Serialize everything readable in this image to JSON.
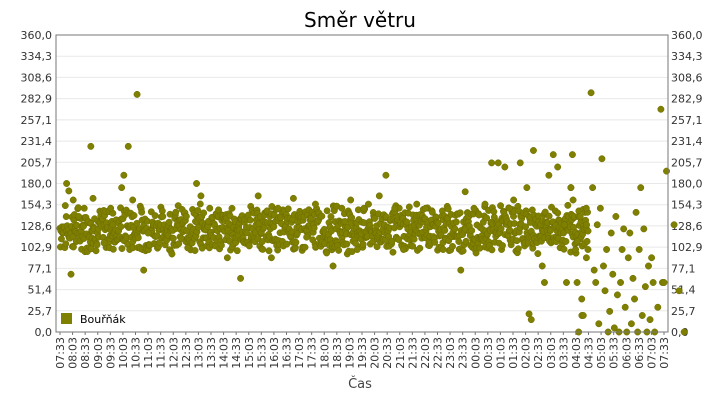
{
  "chart_data": {
    "type": "scatter",
    "title": "Směr větru",
    "xlabel": "Čas",
    "ylabel": "°",
    "ylim": [
      0,
      360
    ],
    "y_ticks": [
      "0,0",
      "25,7",
      "51,4",
      "77,1",
      "102,9",
      "128,6",
      "154,3",
      "180,0",
      "205,7",
      "231,4",
      "257,1",
      "282,9",
      "308,6",
      "334,3",
      "360,0"
    ],
    "x_ticks": [
      "07:33",
      "08:03",
      "08:33",
      "09:03",
      "09:33",
      "10:03",
      "10:33",
      "11:03",
      "11:33",
      "12:03",
      "12:33",
      "13:03",
      "13:33",
      "14:03",
      "14:33",
      "15:03",
      "15:33",
      "16:03",
      "16:33",
      "17:03",
      "17:33",
      "18:03",
      "18:33",
      "19:03",
      "19:33",
      "20:03",
      "20:33",
      "21:03",
      "21:33",
      "22:03",
      "22:33",
      "23:03",
      "23:33",
      "00:03",
      "00:33",
      "01:03",
      "01:33",
      "02:03",
      "02:33",
      "03:03",
      "03:33",
      "04:03",
      "04:33",
      "05:03",
      "05:33",
      "06:03",
      "06:33",
      "07:03",
      "07:33"
    ],
    "x_range_hours": [
      0,
      24
    ],
    "legend_position": "bottom-left",
    "grid": true,
    "series": [
      {
        "name": "Bouřňák",
        "color": "#808000",
        "typical_band": [
          100,
          150
        ],
        "points": [
          [
            0.3,
            180
          ],
          [
            0.4,
            171
          ],
          [
            0.5,
            70
          ],
          [
            0.6,
            160
          ],
          [
            0.85,
            140
          ],
          [
            1.1,
            150
          ],
          [
            1.4,
            225
          ],
          [
            1.5,
            162
          ],
          [
            2.0,
            108
          ],
          [
            2.3,
            150
          ],
          [
            2.4,
            130
          ],
          [
            2.8,
            175
          ],
          [
            2.9,
            190
          ],
          [
            3.1,
            225
          ],
          [
            3.3,
            160
          ],
          [
            3.5,
            288
          ],
          [
            3.8,
            75
          ],
          [
            4.0,
            120
          ],
          [
            5.8,
            102
          ],
          [
            6.2,
            180
          ],
          [
            6.4,
            165
          ],
          [
            6.8,
            150
          ],
          [
            7.2,
            148
          ],
          [
            7.6,
            90
          ],
          [
            8.2,
            65
          ],
          [
            9.0,
            165
          ],
          [
            9.6,
            90
          ],
          [
            9.9,
            150
          ],
          [
            10.6,
            162
          ],
          [
            11.2,
            115
          ],
          [
            11.6,
            155
          ],
          [
            12.4,
            80
          ],
          [
            12.8,
            150
          ],
          [
            13.2,
            160
          ],
          [
            13.5,
            100
          ],
          [
            13.8,
            150
          ],
          [
            14.5,
            165
          ],
          [
            14.8,
            190
          ],
          [
            15.2,
            150
          ],
          [
            15.6,
            100
          ],
          [
            16.2,
            155
          ],
          [
            16.6,
            150
          ],
          [
            17.4,
            100
          ],
          [
            18.2,
            75
          ],
          [
            18.4,
            170
          ],
          [
            18.8,
            150
          ],
          [
            19.3,
            155
          ],
          [
            19.6,
            205
          ],
          [
            19.9,
            205
          ],
          [
            20.2,
            200
          ],
          [
            20.4,
            150
          ],
          [
            20.6,
            160
          ],
          [
            20.9,
            205
          ],
          [
            21.2,
            175
          ],
          [
            21.3,
            22
          ],
          [
            21.5,
            220
          ],
          [
            21.4,
            15
          ],
          [
            21.7,
            95
          ],
          [
            21.9,
            80
          ],
          [
            22.0,
            60
          ],
          [
            22.2,
            190
          ],
          [
            22.4,
            215
          ],
          [
            22.6,
            200
          ],
          [
            22.9,
            130
          ],
          [
            23.0,
            60
          ],
          [
            23.2,
            175
          ],
          [
            23.3,
            160
          ],
          [
            23.5,
            110
          ],
          [
            23.7,
            20
          ],
          [
            23.9,
            150
          ],
          [
            24.1,
            195
          ],
          [
            24.4,
            130
          ],
          [
            24.6,
            50
          ],
          [
            24.8,
            0
          ]
        ],
        "tail_points": [
          [
            42.0,
            175
          ],
          [
            42.1,
            215
          ],
          [
            42.3,
            100
          ],
          [
            42.4,
            60
          ],
          [
            42.5,
            0
          ],
          [
            42.6,
            140
          ],
          [
            42.7,
            40
          ],
          [
            42.8,
            20
          ],
          [
            43.0,
            90
          ],
          [
            43.1,
            100
          ],
          [
            43.3,
            290
          ],
          [
            43.4,
            175
          ],
          [
            43.5,
            75
          ],
          [
            43.6,
            60
          ],
          [
            43.7,
            130
          ],
          [
            43.8,
            10
          ],
          [
            43.9,
            150
          ],
          [
            44.0,
            210
          ],
          [
            44.1,
            80
          ],
          [
            44.2,
            50
          ],
          [
            44.3,
            100
          ],
          [
            44.4,
            0
          ],
          [
            44.5,
            25
          ],
          [
            44.6,
            120
          ],
          [
            44.7,
            70
          ],
          [
            44.8,
            5
          ],
          [
            44.9,
            140
          ],
          [
            45.0,
            45
          ],
          [
            45.1,
            0
          ],
          [
            45.2,
            60
          ],
          [
            45.3,
            100
          ],
          [
            45.4,
            125
          ],
          [
            45.5,
            30
          ],
          [
            45.6,
            0
          ],
          [
            45.7,
            90
          ],
          [
            45.8,
            120
          ],
          [
            45.9,
            10
          ],
          [
            46.0,
            65
          ],
          [
            46.1,
            40
          ],
          [
            46.2,
            145
          ],
          [
            46.3,
            0
          ],
          [
            46.4,
            100
          ],
          [
            46.5,
            175
          ],
          [
            46.6,
            20
          ],
          [
            46.7,
            125
          ],
          [
            46.8,
            55
          ],
          [
            46.9,
            0
          ],
          [
            47.0,
            80
          ],
          [
            47.1,
            15
          ],
          [
            47.2,
            90
          ],
          [
            47.3,
            60
          ],
          [
            47.4,
            0
          ],
          [
            47.6,
            30
          ],
          [
            47.8,
            270
          ],
          [
            47.9,
            60
          ],
          [
            48.0,
            60
          ]
        ]
      }
    ]
  }
}
